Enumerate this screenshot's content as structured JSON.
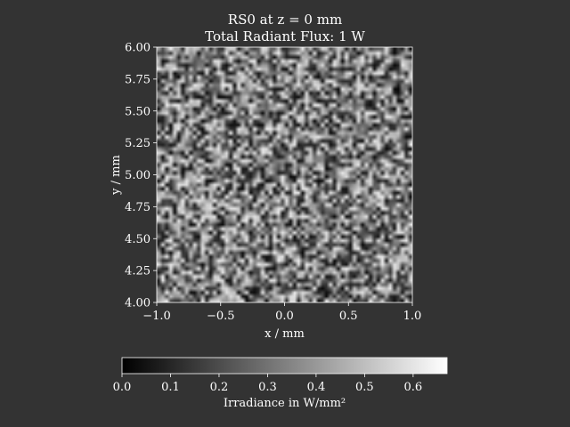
{
  "chart_data": {
    "type": "heatmap",
    "title": "RS0 at z = 0 mm",
    "subtitle": "Total Radiant Flux: 1 W",
    "xlabel": "x / mm",
    "ylabel": "y / mm",
    "xlim": [
      -1.0,
      1.0
    ],
    "ylim": [
      4.0,
      6.0
    ],
    "xticks": [
      -1.0,
      -0.5,
      0.0,
      0.5,
      1.0
    ],
    "xtick_labels": [
      "−1.0",
      "−0.5",
      "0.0",
      "0.5",
      "1.0"
    ],
    "yticks": [
      4.0,
      4.25,
      4.5,
      4.75,
      5.0,
      5.25,
      5.5,
      5.75,
      6.0
    ],
    "ytick_labels": [
      "4.00",
      "4.25",
      "4.50",
      "4.75",
      "5.00",
      "5.25",
      "5.50",
      "5.75",
      "6.00"
    ],
    "colorbar": {
      "label": "Irradiance in W/mm²",
      "range": [
        0.0,
        0.67
      ],
      "ticks": [
        0.0,
        0.1,
        0.2,
        0.3,
        0.4,
        0.5,
        0.6
      ],
      "tick_labels": [
        "0.0",
        "0.1",
        "0.2",
        "0.3",
        "0.4",
        "0.5",
        "0.6"
      ],
      "colormap": "gray",
      "orientation": "horizontal"
    },
    "field": {
      "description": "noisy near-uniform irradiance",
      "mean": 0.32,
      "spread": 0.3,
      "resolution": 64
    },
    "grid": false,
    "colors": {
      "background": "#333333",
      "foreground": "#ffffff"
    }
  }
}
